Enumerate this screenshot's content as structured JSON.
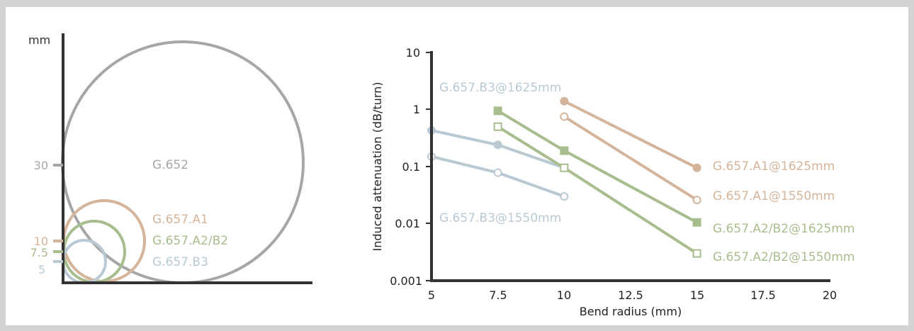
{
  "chart_data": [
    {
      "type": "diagram",
      "description": "Minimum bend radius comparison",
      "y_unit_label": "mm",
      "ticks": [
        "30",
        "10",
        "7.5",
        "5"
      ],
      "circles": [
        {
          "label": "G.652",
          "radius_mm": 30,
          "color": "#a6a6a6"
        },
        {
          "label": "G.657.A1",
          "radius_mm": 10,
          "color": "#d4b49a"
        },
        {
          "label": "G.657.A2/B2",
          "radius_mm": 7.5,
          "color": "#a8bd8e"
        },
        {
          "label": "G.657.B3",
          "radius_mm": 5,
          "color": "#b8c9d3"
        }
      ]
    },
    {
      "type": "line",
      "xlabel": "Bend radius (mm)",
      "ylabel": "Induced attenuation (dB/turn)",
      "yscale": "log",
      "xlim": [
        5,
        20
      ],
      "ylim": [
        0.001,
        10
      ],
      "x_ticks": [
        "5",
        "7.5",
        "10",
        "12.5",
        "15",
        "17.5",
        "20"
      ],
      "y_ticks": [
        "10",
        "1",
        "0.1",
        "0.01",
        "0.001"
      ],
      "series": [
        {
          "name": "G.657.B3@1625mm",
          "x": [
            5,
            7.5,
            10
          ],
          "y": [
            0.43,
            0.24,
            0.095
          ],
          "color": "#b8c9d3",
          "marker": "filled-circle"
        },
        {
          "name": "G.657.B3@1550mm",
          "x": [
            5,
            7.5,
            10
          ],
          "y": [
            0.15,
            0.078,
            0.03
          ],
          "color": "#b8c9d3",
          "marker": "open-circle"
        },
        {
          "name": "G.657.A1@1625mm",
          "x": [
            10,
            15
          ],
          "y": [
            1.4,
            0.095
          ],
          "color": "#d4b49a",
          "marker": "filled-circle"
        },
        {
          "name": "G.657.A1@1550mm",
          "x": [
            10,
            15
          ],
          "y": [
            0.75,
            0.026
          ],
          "color": "#d4b49a",
          "marker": "open-circle"
        },
        {
          "name": "G.657.A2/B2@1625mm",
          "x": [
            7.5,
            10,
            15
          ],
          "y": [
            0.95,
            0.19,
            0.0105
          ],
          "color": "#a8bd8e",
          "marker": "filled-square"
        },
        {
          "name": "G.657.A2/B2@1550mm",
          "x": [
            7.5,
            10,
            15
          ],
          "y": [
            0.5,
            0.095,
            0.003
          ],
          "color": "#a8bd8e",
          "marker": "open-square"
        }
      ]
    }
  ]
}
